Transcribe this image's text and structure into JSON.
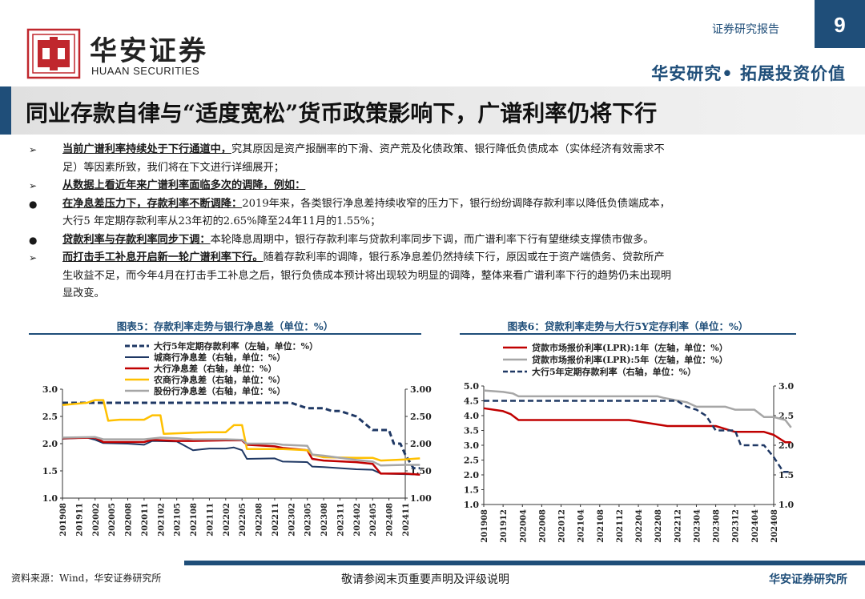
{
  "header": {
    "brand_cn": "华安证券",
    "brand_en": "HUAAN SECURITIES",
    "report_type": "证券研究报告",
    "page_number": "9",
    "tagline": "华安研究• 拓展投资价值",
    "colors": {
      "primary": "#1f4e79",
      "logo_red": "#c0272d"
    },
    "logo_icon": "huaan-seal-logo"
  },
  "title": "同业存款自律与“适度宽松”货币政策影响下，广谱利率仍将下行",
  "bullets": [
    {
      "marker": "➢",
      "bold": "当前广谱利率持续处于下行通道中，",
      "text": "究其原因是资产报酬率的下滑、资产荒及化债政策、银行降低负债成本（实体经济有效需求不",
      "cont": "足）等因素所致，我们将在下文进行详细展开；"
    },
    {
      "marker": "➢",
      "bold": "从数据上看近年来广谱利率面临多次的调降，例如：",
      "text": "",
      "cont": ""
    },
    {
      "marker": "●",
      "bold": "在净息差压力下，存款利率不断调降：",
      "text": "2019年来，各类银行净息差持续收窄的压力下，银行纷纷调降存款利率以降低负债端成本，",
      "cont": "大行5 年定期存款利率从23年初的2.65%降至24年11月的1.55%；"
    },
    {
      "marker": "●",
      "bold": "贷款利率与存款利率同步下调：",
      "text": "本轮降息周期中，银行存款利率与贷款利率同步下调，而广谱利率下行有望继续支撑债市做多。",
      "cont": ""
    },
    {
      "marker": "➢",
      "bold": "而打击手工补息开启新一轮广谱利率下行。",
      "text": "随着存款利率的调降，银行系净息差仍然持续下行，原因或在于资产端债务、贷款所产",
      "cont": "生收益不足，而今年4月在打击手工补息之后，银行负债成本预计将出现较为明显的调降，整体来看广谱利率下行的趋势仍未出现明",
      "cont2": "显改变。"
    }
  ],
  "chart_data": [
    {
      "type": "line",
      "title": "图表5：存款利率走势与银行净息差（单位：%）",
      "x_ticks": [
        "201908",
        "201911",
        "202002",
        "202005",
        "202008",
        "202011",
        "202102",
        "202105",
        "202108",
        "202111",
        "202202",
        "202205",
        "202208",
        "202211",
        "202302",
        "202305",
        "202308",
        "202311",
        "202402",
        "202405",
        "202408",
        "202411"
      ],
      "ylim_left": [
        1.0,
        3.0
      ],
      "yticks_left": [
        "1.0",
        "1.5",
        "2.0",
        "2.5",
        "3.0"
      ],
      "ylim_right": [
        1.0,
        3.0
      ],
      "yticks_right": [
        "1.00",
        "1.50",
        "2.00",
        "2.50",
        "3.00"
      ],
      "legend_position": "top-center",
      "series": [
        {
          "name": "大行5年定期存款利率（左轴，单位：%）",
          "axis": "left",
          "color": "#1f3864",
          "dash": true,
          "width": 3,
          "points": [
            [
              0,
              2.75
            ],
            [
              14,
              2.75
            ],
            [
              15,
              2.65
            ],
            [
              16,
              2.65
            ],
            [
              16.5,
              2.6
            ],
            [
              17,
              2.6
            ],
            [
              18,
              2.5
            ],
            [
              19,
              2.25
            ],
            [
              20,
              2.25
            ],
            [
              20.3,
              2.0
            ],
            [
              20.7,
              2.0
            ],
            [
              21,
              1.8
            ],
            [
              21.5,
              1.55
            ],
            [
              21.9,
              1.55
            ]
          ]
        },
        {
          "name": "城商行净息差（右轴，单位：%）",
          "axis": "right",
          "color": "#1f3864",
          "dash": false,
          "width": 2,
          "points": [
            [
              0,
              2.09
            ],
            [
              1.5,
              2.11
            ],
            [
              2,
              2.07
            ],
            [
              2.5,
              2.01
            ],
            [
              4,
              2.0
            ],
            [
              5,
              1.98
            ],
            [
              5.5,
              2.05
            ],
            [
              7,
              2.04
            ],
            [
              8,
              1.88
            ],
            [
              9,
              1.91
            ],
            [
              10,
              1.91
            ],
            [
              10.5,
              1.93
            ],
            [
              11,
              1.88
            ],
            [
              11.3,
              1.72
            ],
            [
              13,
              1.73
            ],
            [
              13.5,
              1.67
            ],
            [
              15,
              1.66
            ],
            [
              15.3,
              1.58
            ],
            [
              16,
              1.57
            ],
            [
              17,
              1.55
            ],
            [
              18,
              1.53
            ],
            [
              19,
              1.52
            ],
            [
              19.5,
              1.45
            ],
            [
              21,
              1.44
            ],
            [
              21.9,
              1.43
            ]
          ]
        },
        {
          "name": "大行净息差（右轴，单位：%）",
          "axis": "right",
          "color": "#c00000",
          "dash": false,
          "width": 2.5,
          "points": [
            [
              0,
              2.1
            ],
            [
              2,
              2.11
            ],
            [
              2.5,
              2.03
            ],
            [
              5,
              2.03
            ],
            [
              5.5,
              2.07
            ],
            [
              7,
              2.05
            ],
            [
              8,
              2.05
            ],
            [
              10,
              2.06
            ],
            [
              11,
              2.06
            ],
            [
              11.3,
              1.98
            ],
            [
              13,
              1.95
            ],
            [
              13.5,
              1.92
            ],
            [
              15,
              1.88
            ],
            [
              15.3,
              1.72
            ],
            [
              16,
              1.69
            ],
            [
              18,
              1.66
            ],
            [
              19,
              1.63
            ],
            [
              19.5,
              1.45
            ],
            [
              21,
              1.45
            ],
            [
              21.9,
              1.43
            ]
          ]
        },
        {
          "name": "农商行净息差（右轴，单位：%）",
          "axis": "right",
          "color": "#ffc000",
          "dash": false,
          "width": 2.5,
          "points": [
            [
              0,
              2.71
            ],
            [
              1.5,
              2.75
            ],
            [
              2,
              2.8
            ],
            [
              2.5,
              2.8
            ],
            [
              2.8,
              2.42
            ],
            [
              3.5,
              2.44
            ],
            [
              5,
              2.44
            ],
            [
              5.5,
              2.52
            ],
            [
              6,
              2.52
            ],
            [
              6.2,
              2.18
            ],
            [
              8,
              2.2
            ],
            [
              9,
              2.21
            ],
            [
              10,
              2.21
            ],
            [
              10.5,
              2.34
            ],
            [
              11,
              2.34
            ],
            [
              11.3,
              1.9
            ],
            [
              13,
              1.9
            ],
            [
              13.5,
              1.9
            ],
            [
              15,
              1.88
            ],
            [
              15.3,
              1.8
            ],
            [
              16,
              1.75
            ],
            [
              18,
              1.74
            ],
            [
              19,
              1.74
            ],
            [
              19.5,
              1.69
            ],
            [
              21,
              1.71
            ],
            [
              21.9,
              1.73
            ]
          ]
        },
        {
          "name": "股份行净息差（右轴，单位：%）",
          "axis": "right",
          "color": "#a6a6a6",
          "dash": false,
          "width": 2.5,
          "points": [
            [
              0,
              2.11
            ],
            [
              2,
              2.12
            ],
            [
              2.5,
              2.08
            ],
            [
              4,
              2.08
            ],
            [
              5,
              2.08
            ],
            [
              6,
              2.11
            ],
            [
              7,
              2.1
            ],
            [
              8,
              2.08
            ],
            [
              10,
              2.08
            ],
            [
              11,
              2.07
            ],
            [
              11.3,
              2.0
            ],
            [
              13,
              2.0
            ],
            [
              13.5,
              1.98
            ],
            [
              15,
              1.96
            ],
            [
              15.3,
              1.8
            ],
            [
              16,
              1.78
            ],
            [
              18,
              1.7
            ],
            [
              19,
              1.67
            ],
            [
              19.5,
              1.6
            ],
            [
              21,
              1.61
            ],
            [
              21.9,
              1.61
            ]
          ]
        }
      ]
    },
    {
      "type": "line",
      "title": "图表6：贷款利率走势与大行5Y定存利率（单位：%）",
      "x_ticks": [
        "201908",
        "201912",
        "202004",
        "202008",
        "202012",
        "202104",
        "202108",
        "202112",
        "202204",
        "202208",
        "202212",
        "202304",
        "202308",
        "202312",
        "202404",
        "202408"
      ],
      "ylim_left": [
        1.0,
        5.0
      ],
      "yticks_left": [
        "1.0",
        "1.5",
        "2.0",
        "2.5",
        "3.0",
        "3.5",
        "4.0",
        "4.5",
        "5.0"
      ],
      "ylim_right": [
        1.0,
        3.0
      ],
      "yticks_right": [
        "1.0",
        "1.5",
        "2.0",
        "2.5",
        "3.0"
      ],
      "legend_position": "top-center",
      "series": [
        {
          "name": "贷款市场报价利率(LPR):1年（左轴，单位：%）",
          "axis": "left",
          "color": "#c00000",
          "dash": false,
          "width": 2.5,
          "points": [
            [
              0,
              4.25
            ],
            [
              1,
              4.15
            ],
            [
              1.4,
              4.05
            ],
            [
              1.8,
              3.85
            ],
            [
              7.5,
              3.85
            ],
            [
              8,
              3.8
            ],
            [
              9,
              3.7
            ],
            [
              9.5,
              3.65
            ],
            [
              12,
              3.65
            ],
            [
              12.5,
              3.55
            ],
            [
              13,
              3.45
            ],
            [
              14.5,
              3.45
            ],
            [
              15,
              3.35
            ],
            [
              15.6,
              3.1
            ],
            [
              15.9,
              3.1
            ]
          ]
        },
        {
          "name": "贷款市场报价利率(LPR):5年（左轴，单位：%）",
          "axis": "left",
          "color": "#a6a6a6",
          "dash": false,
          "width": 2.5,
          "points": [
            [
              0,
              4.85
            ],
            [
              1,
              4.8
            ],
            [
              1.5,
              4.75
            ],
            [
              1.8,
              4.65
            ],
            [
              9,
              4.65
            ],
            [
              9.3,
              4.6
            ],
            [
              10.5,
              4.45
            ],
            [
              11,
              4.3
            ],
            [
              12.5,
              4.3
            ],
            [
              13,
              4.2
            ],
            [
              14,
              4.2
            ],
            [
              14.5,
              3.95
            ],
            [
              15,
              3.95
            ],
            [
              15.6,
              3.85
            ],
            [
              15.9,
              3.6
            ]
          ]
        },
        {
          "name": "大行5年定期存款利率（右轴，单位：%）",
          "axis": "right",
          "color": "#1f3864",
          "dash": true,
          "width": 2.5,
          "points": [
            [
              0,
              2.75
            ],
            [
              10,
              2.75
            ],
            [
              10.5,
              2.65
            ],
            [
              11,
              2.6
            ],
            [
              11.5,
              2.5
            ],
            [
              12,
              2.25
            ],
            [
              13,
              2.25
            ],
            [
              13.3,
              2.0
            ],
            [
              14.5,
              2.0
            ],
            [
              15,
              1.8
            ],
            [
              15.5,
              1.55
            ],
            [
              15.9,
              1.55
            ]
          ]
        }
      ]
    }
  ],
  "footer": {
    "source": "资料来源：Wind，华安证券研究所",
    "notice": "敬请参阅末页重要声明及评级说明",
    "org": "华安证券研究所"
  }
}
